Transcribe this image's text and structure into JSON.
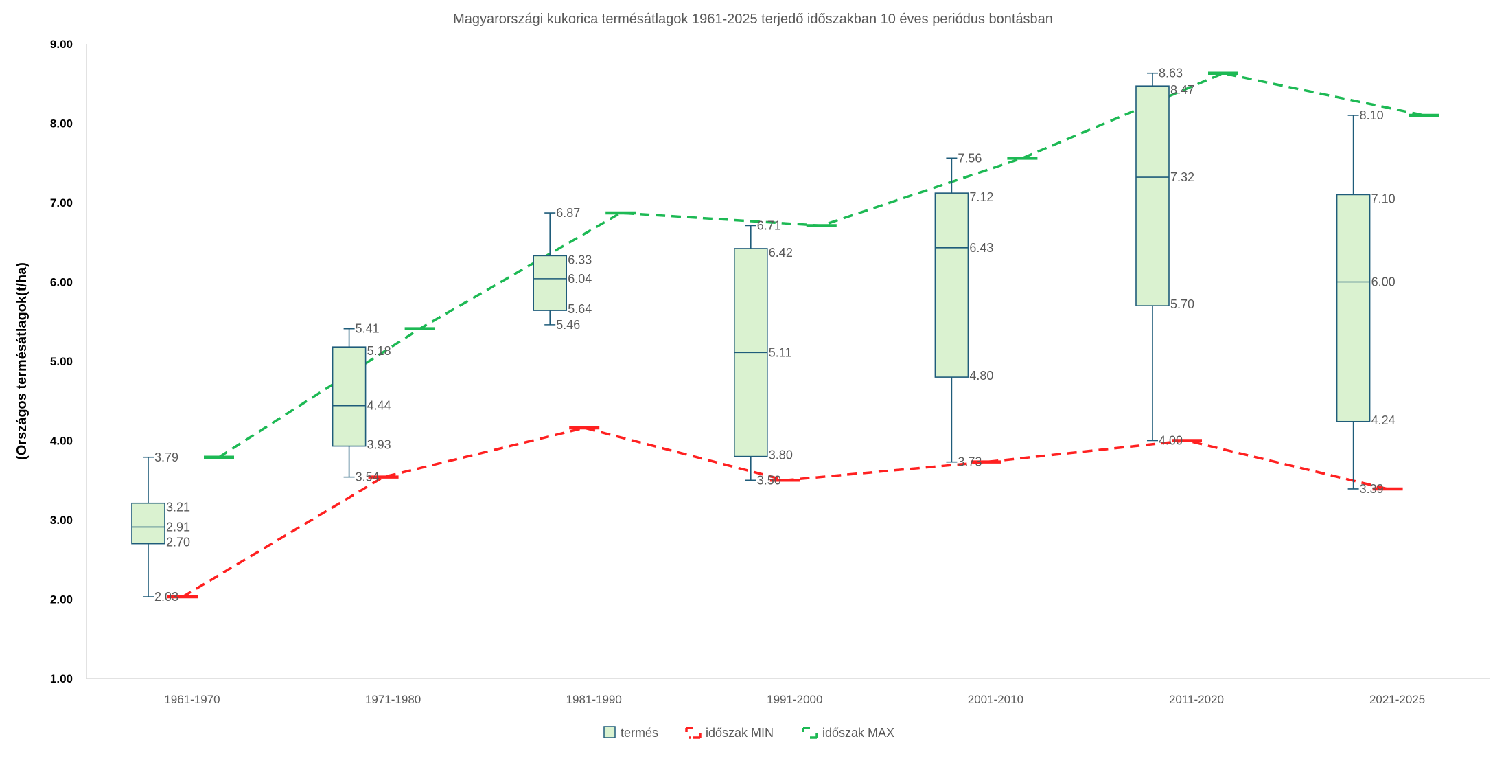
{
  "chart_data": {
    "type": "box",
    "title": "Magyarországi kukorica termésátlagok 1961-2025 terjedő időszakban 10 éves periódus bontásban",
    "xlabel": "",
    "ylabel": "(Országos termésátlagok(t/ha)",
    "ylim": [
      1.0,
      9.0
    ],
    "yticks": [
      "1.00",
      "2.00",
      "3.00",
      "4.00",
      "5.00",
      "6.00",
      "7.00",
      "8.00",
      "9.00"
    ],
    "grid": false,
    "legend_position": "bottom",
    "categories": [
      "1961-1970",
      "1971-1980",
      "1981-1990",
      "1991-2000",
      "2001-2010",
      "2011-2020",
      "2021-2025"
    ],
    "boxes": [
      {
        "min": 2.03,
        "q1": 2.7,
        "median": 2.91,
        "q3": 3.21,
        "max": 3.79
      },
      {
        "min": 3.54,
        "q1": 3.93,
        "median": 4.44,
        "q3": 5.18,
        "max": 5.41
      },
      {
        "min": 5.46,
        "q1": 5.64,
        "median": 6.04,
        "q3": 6.33,
        "max": 6.87
      },
      {
        "min": 3.5,
        "q1": 3.8,
        "median": 5.11,
        "q3": 6.42,
        "max": 6.71
      },
      {
        "min": 3.73,
        "q1": 4.8,
        "median": 6.43,
        "q3": 7.12,
        "max": 7.56
      },
      {
        "min": 4.0,
        "q1": 5.7,
        "median": 7.32,
        "q3": 8.47,
        "max": 8.63
      },
      {
        "min": 3.39,
        "q1": 4.24,
        "median": 6.0,
        "q3": 7.1,
        "max": 8.1
      }
    ],
    "box_labels": [
      {
        "min": "2.03",
        "q1": "2.70",
        "median": "2.91",
        "q3": "3.21",
        "max": "3.79"
      },
      {
        "min": "3.54",
        "q1": "3.93",
        "median": "4.44",
        "q3": "5.18",
        "max": "5.41"
      },
      {
        "min": "5.46",
        "q1": "5.64",
        "median": "6.04",
        "q3": "6.33",
        "max": "6.87"
      },
      {
        "min": "3.50",
        "q1": "3.80",
        "median": "5.11",
        "q3": "6.42",
        "max": "6.71"
      },
      {
        "min": "3.73",
        "q1": "4.80",
        "median": "6.43",
        "q3": "7.12",
        "max": "7.56"
      },
      {
        "min": "4.00",
        "q1": "5.70",
        "median": "7.32",
        "q3": "8.47",
        "max": "8.63"
      },
      {
        "min": "3.39",
        "q1": "4.24",
        "median": "6.00",
        "q3": "7.10",
        "max": "8.10"
      }
    ],
    "series": [
      {
        "name": "termés",
        "color": "#DAF2D0",
        "stroke": "#1F5C7A"
      },
      {
        "name": "időszak MIN",
        "color": "#FF2020",
        "values": [
          2.03,
          3.54,
          4.16,
          3.5,
          3.73,
          4.0,
          3.39
        ]
      },
      {
        "name": "időszak MAX",
        "color": "#1DB954",
        "values": [
          3.79,
          5.41,
          6.87,
          6.71,
          7.56,
          8.63,
          8.1
        ]
      }
    ]
  }
}
